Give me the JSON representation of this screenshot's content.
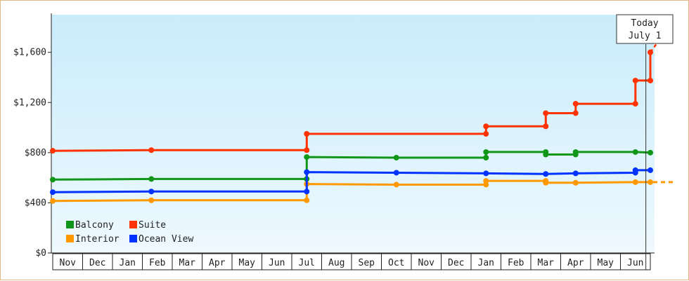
{
  "chart_data": {
    "type": "line",
    "step": true,
    "title": "",
    "xlabel": "",
    "ylabel": "",
    "ylim": [
      0,
      1900
    ],
    "y_ticks": [
      {
        "value": 0,
        "label": "$0"
      },
      {
        "value": 400,
        "label": "$400"
      },
      {
        "value": 800,
        "label": "$800"
      },
      {
        "value": 1200,
        "label": "$1,200"
      },
      {
        "value": 1600,
        "label": "$1,600"
      }
    ],
    "x_months": [
      "Nov",
      "Dec",
      "Jan",
      "Feb",
      "Mar",
      "Apr",
      "May",
      "Jun",
      "Jul",
      "Aug",
      "Sep",
      "Oct",
      "Nov",
      "Dec",
      "Jan",
      "Feb",
      "Mar",
      "Apr",
      "May",
      "Jun"
    ],
    "today": {
      "line1": "Today",
      "line2": "July 1",
      "month_index": 19.85
    },
    "legend_position": "bottom-left",
    "series": [
      {
        "name": "Balcony",
        "color": "#109618",
        "points": [
          [
            0,
            585
          ],
          [
            3.3,
            590
          ],
          [
            8.5,
            590
          ],
          [
            8.5,
            765
          ],
          [
            11.5,
            760
          ],
          [
            14.5,
            760
          ],
          [
            14.5,
            805
          ],
          [
            16.5,
            805
          ],
          [
            16.5,
            785
          ],
          [
            17.5,
            785
          ],
          [
            17.5,
            805
          ],
          [
            19.5,
            805
          ],
          [
            20,
            800
          ]
        ]
      },
      {
        "name": "Suite",
        "color": "#ff3300",
        "points": [
          [
            0,
            815
          ],
          [
            3.3,
            820
          ],
          [
            8.5,
            820
          ],
          [
            8.5,
            950
          ],
          [
            14.5,
            950
          ],
          [
            14.5,
            1010
          ],
          [
            16.5,
            1010
          ],
          [
            16.5,
            1115
          ],
          [
            17.5,
            1115
          ],
          [
            17.5,
            1190
          ],
          [
            19.5,
            1190
          ],
          [
            19.5,
            1375
          ],
          [
            20,
            1375
          ],
          [
            20,
            1600
          ]
        ]
      },
      {
        "name": "Interior",
        "color": "#ff9900",
        "points": [
          [
            0,
            415
          ],
          [
            3.3,
            420
          ],
          [
            8.5,
            420
          ],
          [
            8.5,
            550
          ],
          [
            11.5,
            545
          ],
          [
            14.5,
            545
          ],
          [
            14.5,
            575
          ],
          [
            16.5,
            575
          ],
          [
            16.5,
            560
          ],
          [
            17.5,
            560
          ],
          [
            17.5,
            560
          ],
          [
            19.5,
            565
          ],
          [
            20,
            565
          ]
        ]
      },
      {
        "name": "Ocean View",
        "color": "#0033ff",
        "points": [
          [
            0,
            485
          ],
          [
            3.3,
            490
          ],
          [
            8.5,
            490
          ],
          [
            8.5,
            645
          ],
          [
            11.5,
            640
          ],
          [
            14.5,
            635
          ],
          [
            16.5,
            630
          ],
          [
            17.5,
            635
          ],
          [
            19.5,
            640
          ],
          [
            19.5,
            660
          ],
          [
            20,
            660
          ]
        ]
      }
    ]
  }
}
